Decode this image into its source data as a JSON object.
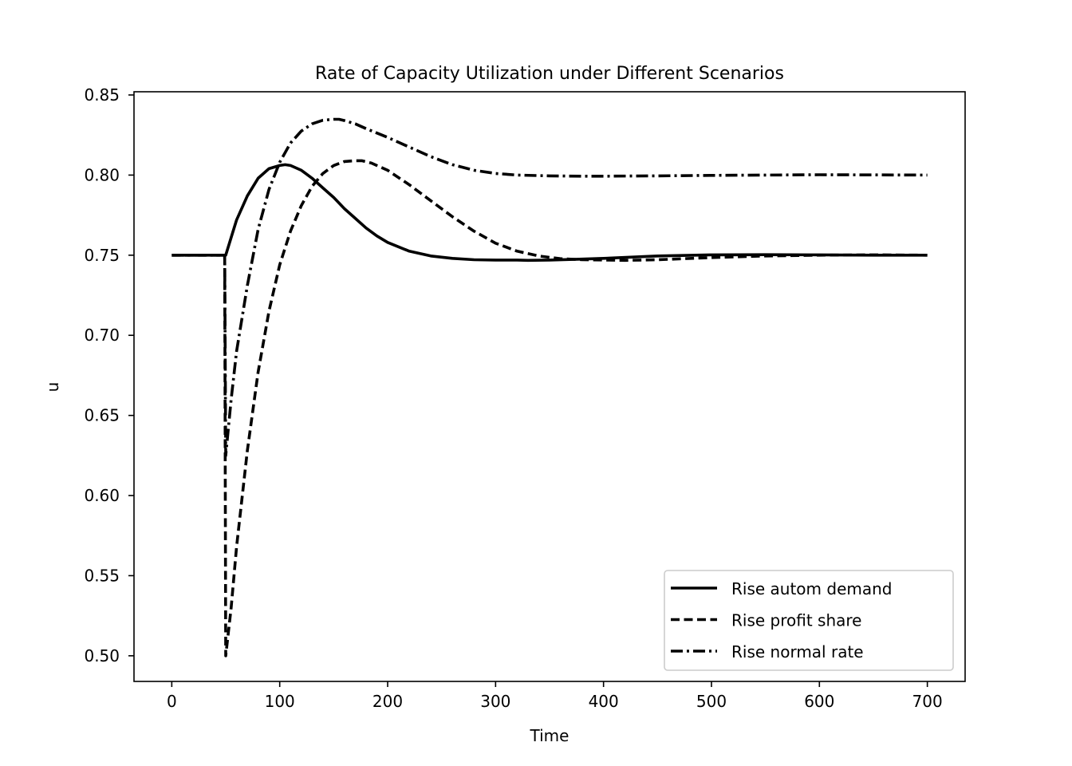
{
  "chart_data": {
    "type": "line",
    "title": "Rate of Capacity Utilization under Different Scenarios",
    "xlabel": "Time",
    "ylabel": "u",
    "xlim": [
      -35,
      735
    ],
    "ylim": [
      0.484,
      0.852
    ],
    "xticks": [
      0,
      100,
      200,
      300,
      400,
      500,
      600,
      700
    ],
    "xtick_labels": [
      "0",
      "100",
      "200",
      "300",
      "400",
      "500",
      "600",
      "700"
    ],
    "yticks": [
      0.5,
      0.55,
      0.6,
      0.65,
      0.7,
      0.75,
      0.8,
      0.85
    ],
    "ytick_labels": [
      "0.50",
      "0.55",
      "0.60",
      "0.65",
      "0.70",
      "0.75",
      "0.80",
      "0.85"
    ],
    "grid": false,
    "legend_position": "lower-right",
    "series": [
      {
        "name": "Rise autom demand",
        "style": "solid",
        "color": "#000000",
        "x": [
          0,
          49,
          50,
          55,
          60,
          70,
          80,
          90,
          100,
          105,
          110,
          120,
          130,
          140,
          150,
          160,
          170,
          180,
          190,
          200,
          220,
          240,
          260,
          280,
          300,
          320,
          330,
          350,
          375,
          400,
          450,
          500,
          550,
          600,
          650,
          700
        ],
        "y": [
          0.75,
          0.75,
          0.75,
          0.761,
          0.772,
          0.787,
          0.798,
          0.804,
          0.806,
          0.8065,
          0.806,
          0.803,
          0.798,
          0.792,
          0.786,
          0.779,
          0.773,
          0.767,
          0.762,
          0.758,
          0.7525,
          0.7495,
          0.748,
          0.7472,
          0.747,
          0.747,
          0.7468,
          0.747,
          0.7475,
          0.748,
          0.7495,
          0.7502,
          0.7503,
          0.7502,
          0.75,
          0.75
        ]
      },
      {
        "name": "Rise profit share",
        "style": "dashed",
        "color": "#000000",
        "x": [
          0,
          48,
          49,
          50,
          55,
          60,
          70,
          80,
          90,
          100,
          110,
          120,
          130,
          140,
          150,
          160,
          170,
          176,
          185,
          200,
          220,
          240,
          260,
          280,
          300,
          320,
          340,
          360,
          380,
          400,
          420,
          450,
          500,
          550,
          600,
          650,
          700
        ],
        "y": [
          0.75,
          0.75,
          0.75,
          0.5,
          0.53,
          0.568,
          0.628,
          0.677,
          0.715,
          0.744,
          0.765,
          0.781,
          0.793,
          0.801,
          0.806,
          0.8085,
          0.809,
          0.809,
          0.8075,
          0.803,
          0.794,
          0.784,
          0.774,
          0.765,
          0.7575,
          0.7525,
          0.7495,
          0.7478,
          0.7472,
          0.747,
          0.7468,
          0.7472,
          0.7485,
          0.7495,
          0.75,
          0.7502,
          0.75
        ]
      },
      {
        "name": "Rise normal rate",
        "style": "dashdot",
        "color": "#000000",
        "x": [
          0,
          48,
          49,
          50,
          55,
          60,
          70,
          80,
          90,
          100,
          110,
          120,
          130,
          140,
          150,
          155,
          160,
          170,
          180,
          200,
          220,
          240,
          260,
          280,
          300,
          320,
          350,
          380,
          400,
          450,
          500,
          550,
          600,
          650,
          700
        ],
        "y": [
          0.75,
          0.75,
          0.75,
          0.625,
          0.66,
          0.69,
          0.731,
          0.766,
          0.791,
          0.808,
          0.82,
          0.8275,
          0.832,
          0.8342,
          0.8348,
          0.8348,
          0.834,
          0.832,
          0.829,
          0.8235,
          0.8175,
          0.8115,
          0.8065,
          0.803,
          0.801,
          0.8,
          0.7995,
          0.7993,
          0.7993,
          0.7995,
          0.7998,
          0.8,
          0.8002,
          0.8001,
          0.8
        ]
      }
    ]
  }
}
